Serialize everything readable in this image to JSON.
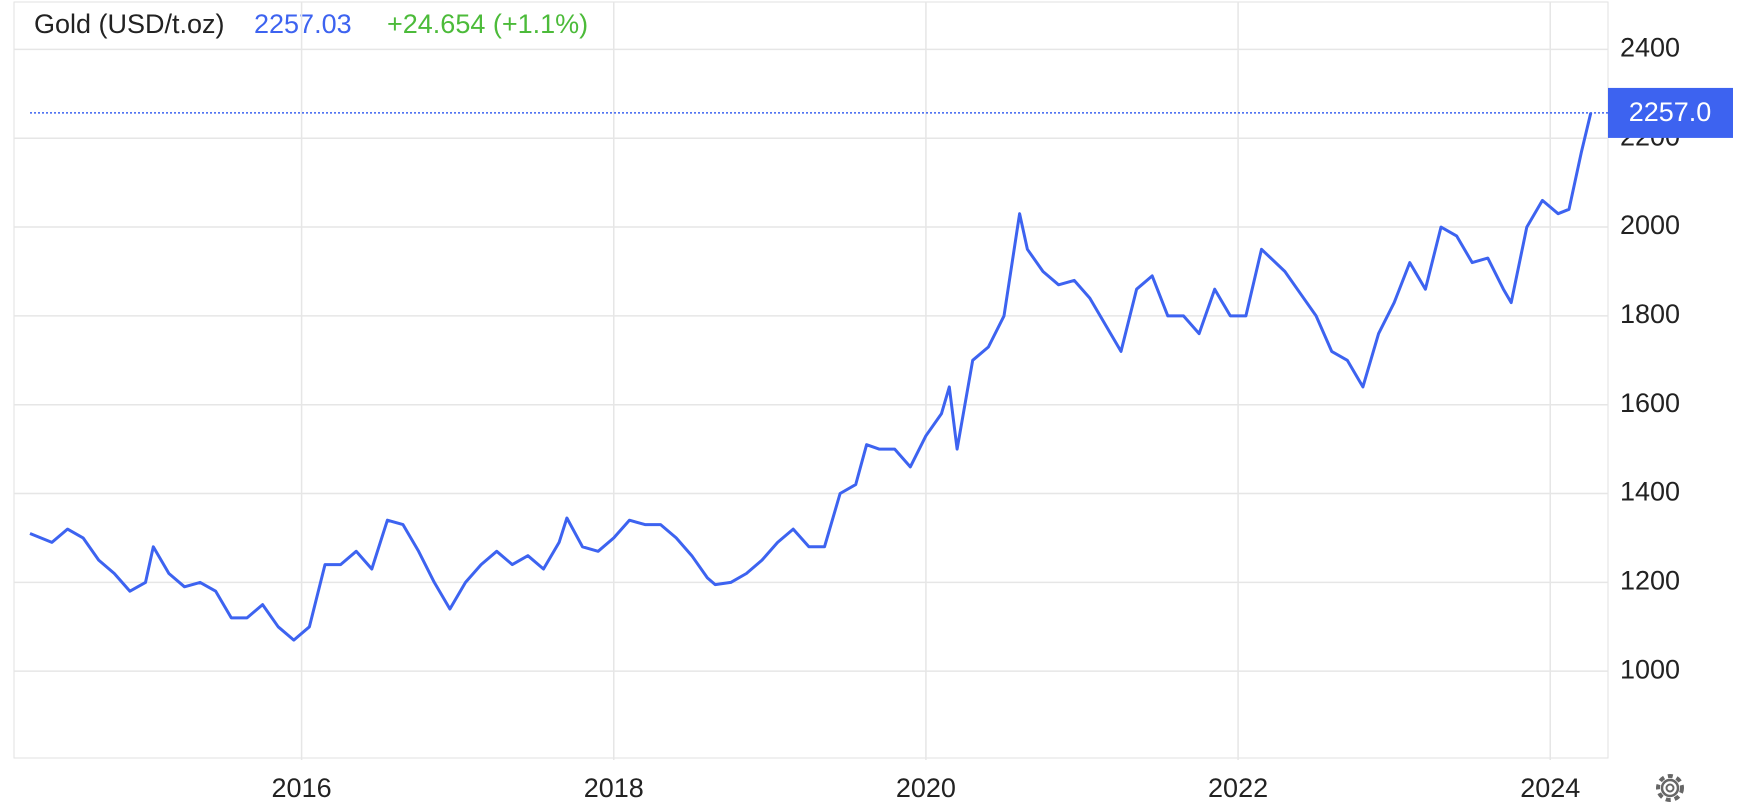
{
  "chart_data": {
    "type": "line",
    "title": "Gold (USD/t.oz)",
    "price": 2257.03,
    "change": "+24.654 (+1.1%)",
    "last_marker": {
      "value": 2257.0,
      "label": "2257.0"
    },
    "color": "#3d63f0",
    "grid": true,
    "xlim": [
      2014.26,
      2024.37
    ],
    "xticks": [
      2016,
      2018,
      2020,
      2022,
      2024
    ],
    "ylim": [
      800,
      2500
    ],
    "yticks": [
      1000,
      1200,
      1400,
      1600,
      1800,
      2000,
      2200,
      2400
    ],
    "x": [
      2014.26,
      2014.4,
      2014.5,
      2014.6,
      2014.7,
      2014.8,
      2014.9,
      2015.0,
      2015.05,
      2015.15,
      2015.25,
      2015.35,
      2015.45,
      2015.55,
      2015.65,
      2015.75,
      2015.85,
      2015.95,
      2016.05,
      2016.15,
      2016.25,
      2016.35,
      2016.45,
      2016.55,
      2016.65,
      2016.75,
      2016.85,
      2016.95,
      2017.05,
      2017.15,
      2017.25,
      2017.35,
      2017.45,
      2017.55,
      2017.65,
      2017.7,
      2017.8,
      2017.9,
      2018.0,
      2018.1,
      2018.2,
      2018.3,
      2018.4,
      2018.5,
      2018.6,
      2018.65,
      2018.75,
      2018.85,
      2018.95,
      2019.05,
      2019.15,
      2019.25,
      2019.35,
      2019.45,
      2019.55,
      2019.62,
      2019.7,
      2019.8,
      2019.9,
      2020.0,
      2020.1,
      2020.15,
      2020.2,
      2020.3,
      2020.4,
      2020.5,
      2020.6,
      2020.65,
      2020.75,
      2020.85,
      2020.95,
      2021.05,
      2021.15,
      2021.25,
      2021.35,
      2021.45,
      2021.55,
      2021.65,
      2021.75,
      2021.85,
      2021.95,
      2022.05,
      2022.15,
      2022.3,
      2022.4,
      2022.5,
      2022.6,
      2022.7,
      2022.8,
      2022.9,
      2023.0,
      2023.1,
      2023.2,
      2023.3,
      2023.4,
      2023.5,
      2023.6,
      2023.7,
      2023.75,
      2023.85,
      2023.95,
      2024.05,
      2024.12,
      2024.2,
      2024.26
    ],
    "values": [
      1310,
      1290,
      1320,
      1300,
      1250,
      1220,
      1180,
      1200,
      1280,
      1220,
      1190,
      1200,
      1180,
      1120,
      1120,
      1150,
      1100,
      1070,
      1100,
      1240,
      1240,
      1270,
      1230,
      1340,
      1330,
      1270,
      1200,
      1140,
      1200,
      1240,
      1270,
      1240,
      1260,
      1230,
      1290,
      1345,
      1280,
      1270,
      1300,
      1340,
      1330,
      1330,
      1300,
      1260,
      1210,
      1195,
      1200,
      1220,
      1250,
      1290,
      1320,
      1280,
      1280,
      1400,
      1420,
      1510,
      1500,
      1500,
      1460,
      1530,
      1580,
      1640,
      1500,
      1700,
      1730,
      1800,
      2030,
      1950,
      1900,
      1870,
      1880,
      1840,
      1780,
      1720,
      1860,
      1890,
      1800,
      1800,
      1760,
      1860,
      1800,
      1800,
      1950,
      1900,
      1850,
      1800,
      1720,
      1700,
      1640,
      1760,
      1830,
      1920,
      1860,
      2000,
      1980,
      1920,
      1930,
      1860,
      1830,
      2000,
      2060,
      2030,
      2040,
      2170,
      2257
    ]
  }
}
